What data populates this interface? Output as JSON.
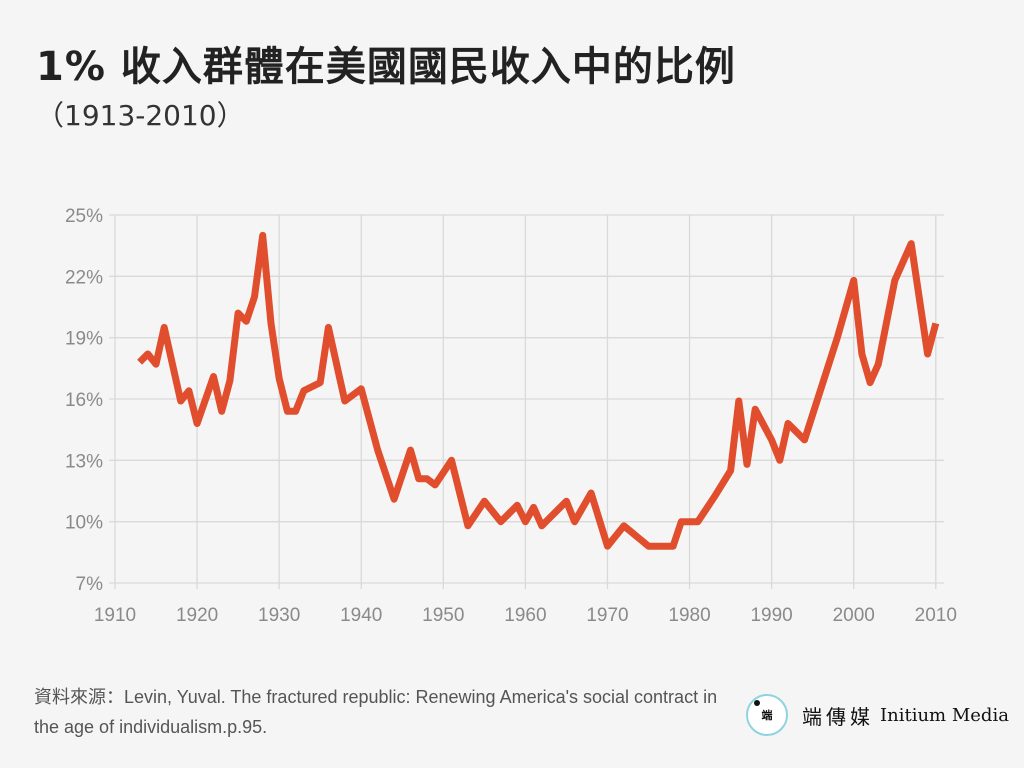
{
  "header": {
    "title": "1% 收入群體在美國國民收入中的比例",
    "subtitle": "（1913-2010）"
  },
  "footer": {
    "source": "資料來源：Levin, Yuval. The fractured republic: Renewing America's social contract in the age of individualism.p.95.",
    "logo_mark": "端",
    "logo_cn": "端傳媒",
    "logo_en": "Initium Media"
  },
  "colors": {
    "line": "#e04e2d",
    "grid": "#d9d9d9",
    "background": "#f5f5f5"
  },
  "chart_data": {
    "type": "line",
    "title": "1% 收入群體在美國國民收入中的比例",
    "subtitle": "（1913-2010）",
    "xlabel": "",
    "ylabel": "",
    "xlim": [
      1910,
      2011
    ],
    "ylim": [
      7,
      25
    ],
    "x_ticks": [
      1910,
      1920,
      1930,
      1940,
      1950,
      1960,
      1970,
      1980,
      1990,
      2000,
      2010
    ],
    "y_ticks": [
      7,
      10,
      13,
      16,
      19,
      22,
      25
    ],
    "y_tick_labels": [
      "7%",
      "10%",
      "13%",
      "16%",
      "19%",
      "22%",
      "25%"
    ],
    "grid": true,
    "legend": "none",
    "series": [
      {
        "x": [
          1913,
          1914,
          1915,
          1916,
          1918,
          1919,
          1920,
          1922,
          1923,
          1924,
          1925,
          1926,
          1927,
          1928,
          1929,
          1930,
          1931,
          1932,
          1933,
          1935,
          1936,
          1938,
          1940,
          1942,
          1944,
          1946,
          1947,
          1948,
          1949,
          1951,
          1953,
          1955,
          1957,
          1959,
          1960,
          1961,
          1962,
          1965,
          1966,
          1968,
          1970,
          1972,
          1975,
          1977,
          1978,
          1979,
          1981,
          1983,
          1985,
          1986,
          1987,
          1988,
          1990,
          1991,
          1992,
          1994,
          1996,
          1998,
          2000,
          2001,
          2002,
          2003,
          2005,
          2007,
          2009,
          2010
        ],
        "values": [
          17.8,
          18.2,
          17.7,
          19.5,
          15.9,
          16.4,
          14.8,
          17.1,
          15.4,
          16.9,
          20.2,
          19.8,
          21.0,
          24.0,
          19.7,
          17.0,
          15.4,
          15.4,
          16.4,
          16.8,
          19.5,
          15.9,
          16.5,
          13.5,
          11.1,
          13.5,
          12.1,
          12.1,
          11.8,
          13.0,
          9.8,
          11.0,
          10.0,
          10.8,
          10.0,
          10.7,
          9.8,
          11.0,
          10.0,
          11.4,
          8.8,
          9.8,
          8.8,
          8.8,
          8.8,
          10.0,
          10.0,
          11.2,
          12.5,
          15.9,
          12.8,
          15.5,
          14.0,
          13.0,
          14.8,
          14.0,
          16.5,
          19.0,
          21.8,
          18.2,
          16.8,
          17.7,
          21.8,
          23.6,
          18.2,
          19.7
        ]
      }
    ]
  }
}
